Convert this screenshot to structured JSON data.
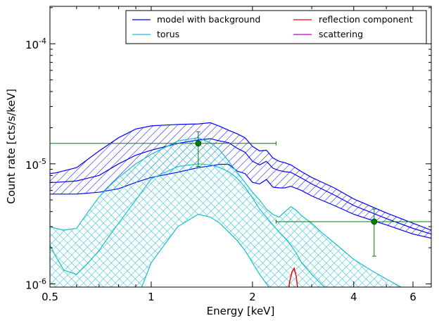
{
  "chart_data": {
    "type": "line",
    "title": "",
    "xlabel": "Energy [keV]",
    "ylabel": "Count rate [cts/s/keV]",
    "x_scale": "log",
    "y_scale": "log",
    "xlim": [
      0.5,
      6.8
    ],
    "ylim": [
      9.4e-07,
      0.000205
    ],
    "x_ticks": [
      {
        "value": 0.5,
        "label": "0.5"
      },
      {
        "value": 1,
        "label": "1"
      },
      {
        "value": 2,
        "label": "2"
      },
      {
        "value": 4,
        "label": "4"
      },
      {
        "value": 6,
        "label": "6"
      }
    ],
    "y_ticks": [
      {
        "value": 1e-06,
        "base": "10",
        "exp": "-6"
      },
      {
        "value": 1e-05,
        "base": "10",
        "exp": "-5"
      },
      {
        "value": 0.0001,
        "base": "10",
        "exp": "-4"
      }
    ],
    "grid": false,
    "legend_position": "top-right",
    "legend": [
      {
        "name": "model with background",
        "color": "#0000ff"
      },
      {
        "name": "torus",
        "color": "#17becf"
      },
      {
        "name": "reflection component",
        "color": "#ff0000"
      },
      {
        "name": "scattering",
        "color": "#bf00bf"
      }
    ],
    "series": [
      {
        "name": "model with background",
        "color": "#0000ff",
        "hatch": "diagonal",
        "x": [
          0.5,
          0.52,
          0.6,
          0.7,
          0.8,
          0.9,
          1.0,
          1.2,
          1.38,
          1.5,
          1.6,
          1.7,
          1.8,
          1.9,
          2.0,
          2.1,
          2.2,
          2.3,
          2.4,
          2.5,
          2.6,
          2.8,
          3.0,
          3.5,
          4.0,
          5.0,
          6.0,
          6.8
        ],
        "lower": [
          5.6e-06,
          5.6e-06,
          5.6e-06,
          5.8e-06,
          6.2e-06,
          7e-06,
          7.7e-06,
          8.5e-06,
          9.3e-06,
          9.6e-06,
          9.9e-06,
          9.9e-06,
          8.7e-06,
          8.3e-06,
          7e-06,
          6.8e-06,
          7.4e-06,
          6.4e-06,
          6.3e-06,
          6.3e-06,
          6.5e-06,
          6e-06,
          5.4e-06,
          4.5e-06,
          3.8e-06,
          3.1e-06,
          2.6e-06,
          2.4e-06
        ],
        "mid": [
          7e-06,
          7e-06,
          7.2e-06,
          8e-06,
          1e-05,
          1.18e-05,
          1.3e-05,
          1.48e-05,
          1.58e-05,
          1.62e-05,
          1.55e-05,
          1.5e-05,
          1.35e-05,
          1.25e-05,
          1.05e-05,
          9.8e-06,
          1.05e-05,
          9.2e-06,
          8.8e-06,
          8.6e-06,
          8.5e-06,
          7.6e-06,
          6.8e-06,
          5.5e-06,
          4.5e-06,
          3.5e-06,
          2.9e-06,
          2.6e-06
        ],
        "upper": [
          8.3e-06,
          8.4e-06,
          9.3e-06,
          1.28e-05,
          1.65e-05,
          1.95e-05,
          2.07e-05,
          2.13e-05,
          2.15e-05,
          2.2e-05,
          2.05e-05,
          1.9e-05,
          1.78e-05,
          1.65e-05,
          1.4e-05,
          1.28e-05,
          1.3e-05,
          1.12e-05,
          1.05e-05,
          1.02e-05,
          9.8e-06,
          8.6e-06,
          7.7e-06,
          6.3e-06,
          5.1e-06,
          3.9e-06,
          3.2e-06,
          2.8e-06
        ]
      },
      {
        "name": "torus",
        "color": "#17becf",
        "hatch": "crosshatch",
        "x": [
          0.5,
          0.52,
          0.55,
          0.6,
          0.65,
          0.7,
          0.75,
          0.8,
          0.9,
          1.0,
          1.2,
          1.38,
          1.5,
          1.6,
          1.7,
          1.8,
          1.9,
          2.0,
          2.1,
          2.2,
          2.3,
          2.4,
          2.5,
          2.6,
          2.7,
          2.8,
          3.0,
          3.2,
          3.5,
          4.0,
          4.5,
          5.0,
          5.5,
          6.0
        ],
        "lower": [
          null,
          null,
          null,
          null,
          null,
          null,
          null,
          null,
          7e-07,
          1.5e-06,
          3e-06,
          3.8e-06,
          3.6e-06,
          3.2e-06,
          2.7e-06,
          2.3e-06,
          1.9e-06,
          1.5e-06,
          1.2e-06,
          1e-06,
          8.5e-07,
          7e-07,
          null,
          null,
          null,
          null,
          null,
          null,
          null,
          null,
          null,
          null,
          null,
          null
        ],
        "mid": [
          2.1e-06,
          1.7e-06,
          1.3e-06,
          1.2e-06,
          1.5e-06,
          1.9e-06,
          2.5e-06,
          3.2e-06,
          5e-06,
          7.5e-06,
          9.5e-06,
          1e-05,
          9.8e-06,
          9.3e-06,
          8.6e-06,
          7.6e-06,
          6.4e-06,
          5.2e-06,
          4.2e-06,
          3.6e-06,
          3.1e-06,
          2.7e-06,
          2.4e-06,
          2.1e-06,
          1.8e-06,
          1.5e-06,
          1.2e-06,
          1e-06,
          8e-07,
          null,
          null,
          null,
          null,
          null
        ],
        "upper": [
          3e-06,
          2.9e-06,
          2.8e-06,
          2.9e-06,
          4e-06,
          5.3e-06,
          6.5e-06,
          7.7e-06,
          1e-05,
          1.2e-05,
          1.55e-05,
          1.65e-05,
          1.5e-05,
          1.3e-05,
          1.05e-05,
          8.5e-06,
          7e-06,
          5.8e-06,
          5e-06,
          4.2e-06,
          3.8e-06,
          3.6e-06,
          4e-06,
          4.4e-06,
          4.1e-06,
          3.7e-06,
          3.2e-06,
          2.7e-06,
          2.2e-06,
          1.6e-06,
          1.3e-06,
          1.1e-06,
          9.5e-07,
          8e-07
        ]
      },
      {
        "name": "reflection component",
        "color": "#ff0000",
        "x": [
          2.55,
          2.58,
          2.62,
          2.66,
          2.7,
          2.74
        ],
        "y": [
          8e-07,
          1.05e-06,
          1.25e-06,
          1.35e-06,
          1.15e-06,
          8e-07
        ]
      }
    ],
    "data_points": [
      {
        "x": 1.38,
        "y": 1.48e-05,
        "xerr": [
          0.5,
          2.35
        ],
        "yerr": [
          9.5e-06,
          1.85e-05
        ],
        "color": "#008000"
      },
      {
        "x": 4.6,
        "y": 3.3e-06,
        "xerr": [
          2.35,
          6.8
        ],
        "yerr": [
          1.7e-06,
          4.2e-06
        ],
        "color": "#008000"
      }
    ]
  }
}
